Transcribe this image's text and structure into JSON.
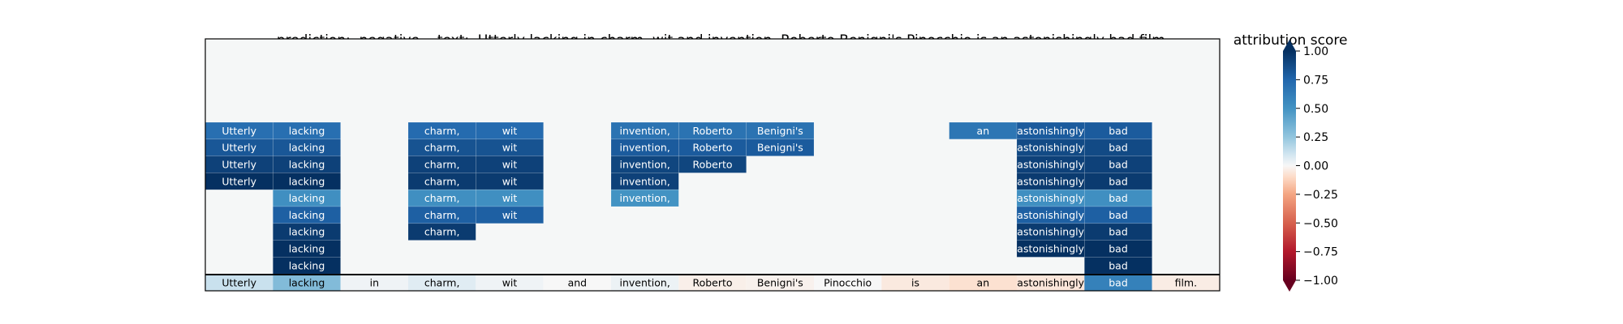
{
  "header": {
    "prediction_label": "prediction:",
    "prediction_value": "negative",
    "text_label": "text:",
    "text_value": "Utterly lacking in charm, wit and invention, Roberto Benigni's Pinocchio is an astonishingly bad film.",
    "colorbar_title": "attribution score"
  },
  "chart_data": {
    "type": "heatmap",
    "tokens": [
      "Utterly",
      "lacking",
      "in",
      "charm,",
      "wit",
      "and",
      "invention,",
      "Roberto",
      "Benigni's",
      "Pinocchio",
      "is",
      "an",
      "astonishingly",
      "bad",
      "film."
    ],
    "token_attribution": [
      0.12,
      0.3,
      0.02,
      0.06,
      0.02,
      0.0,
      0.03,
      -0.03,
      -0.02,
      0.0,
      -0.05,
      -0.08,
      -0.06,
      0.6,
      -0.04
    ],
    "tree_rows": [
      [
        0.7,
        0.7,
        null,
        0.72,
        0.72,
        null,
        0.68,
        0.68,
        0.68,
        null,
        null,
        0.66,
        0.8,
        0.8,
        null
      ],
      [
        0.82,
        0.82,
        null,
        0.84,
        0.84,
        null,
        0.8,
        0.8,
        0.8,
        null,
        null,
        null,
        0.88,
        0.88,
        null
      ],
      [
        0.92,
        0.92,
        null,
        0.92,
        0.92,
        null,
        0.9,
        0.9,
        null,
        null,
        null,
        null,
        0.92,
        0.92,
        null
      ],
      [
        1.0,
        1.0,
        null,
        0.95,
        0.95,
        null,
        0.92,
        null,
        null,
        null,
        null,
        null,
        0.95,
        0.95,
        null
      ],
      [
        null,
        0.52,
        null,
        0.52,
        0.52,
        null,
        0.5,
        null,
        null,
        null,
        null,
        null,
        0.52,
        0.52,
        null
      ],
      [
        null,
        0.78,
        null,
        0.78,
        0.78,
        null,
        null,
        null,
        null,
        null,
        null,
        null,
        0.78,
        0.78,
        null
      ],
      [
        null,
        0.95,
        null,
        0.95,
        null,
        null,
        null,
        null,
        null,
        null,
        null,
        null,
        0.95,
        0.95,
        null
      ],
      [
        null,
        1.0,
        null,
        null,
        null,
        null,
        null,
        null,
        null,
        null,
        null,
        null,
        1.0,
        1.0,
        null
      ],
      [
        null,
        1.0,
        null,
        null,
        null,
        null,
        null,
        null,
        null,
        null,
        null,
        null,
        null,
        1.0,
        null
      ]
    ],
    "colorbar": {
      "colormap": "RdBu",
      "range": [
        -1.0,
        1.0
      ],
      "ticks": [
        1.0,
        0.75,
        0.5,
        0.25,
        0.0,
        -0.25,
        -0.5,
        -0.75,
        -1.0
      ],
      "tick_labels": [
        "1.00",
        "0.75",
        "0.50",
        "0.25",
        "0.00",
        "−0.25",
        "−0.50",
        "−0.75",
        "−1.00"
      ]
    },
    "background_color": "#f5f7f7"
  }
}
